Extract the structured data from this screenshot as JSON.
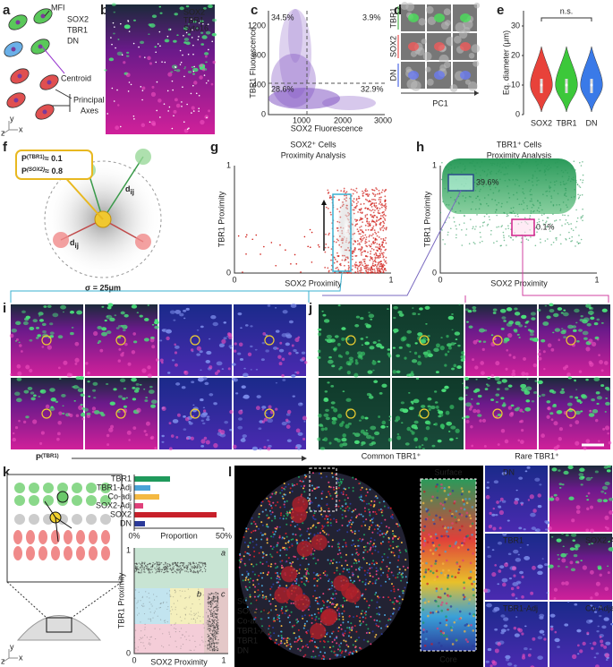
{
  "panel_labels": [
    "a",
    "b",
    "c",
    "d",
    "e",
    "f",
    "g",
    "h",
    "i",
    "j",
    "k",
    "l"
  ],
  "a": {
    "legend": [
      "SOX2",
      "TBR1",
      "DN"
    ],
    "mfi": "MFI",
    "centroid": "Centroid",
    "axes": [
      "Principal",
      "Axes"
    ],
    "orientation": [
      "z",
      "y",
      "x"
    ]
  },
  "b": {
    "channels": [
      "SOX2",
      "TBR1",
      "Syto16"
    ]
  },
  "c": {
    "ylabel": "TBR1 Fluorescence",
    "xlabel": "SOX2 Fluorescence",
    "yticks": [
      0,
      400,
      800,
      1200
    ],
    "xticks": [
      1000,
      2000,
      3000
    ],
    "quadrants": [
      "34.5%",
      "3.9%",
      "28.6%",
      "32.9%"
    ]
  },
  "d": {
    "rows": [
      "TBR1",
      "SOX2",
      "DN"
    ],
    "xlabel": "PC1"
  },
  "e": {
    "ylabel": "Eq. diameter (μm)",
    "yticks": [
      0,
      10,
      20,
      30
    ],
    "categories": [
      "SOX2",
      "TBR1",
      "DN"
    ],
    "annotation": "n.s."
  },
  "f": {
    "p": "P",
    "sub": "i",
    "tbr1_sup": "(TBR1)",
    "tbr1_value": "≈ 0.1",
    "sox2_sup": "(SOX2)",
    "sox2_value": "≈ 0.8",
    "d": "d",
    "d_sub": "ij",
    "sigma": "σ = 25μm"
  },
  "g": {
    "title": [
      "SOX2⁺ Cells",
      "Proximity Analysis"
    ],
    "ylabel": "TBR1 Proximity",
    "xlabel": "SOX2 Proximity",
    "yticks": [
      0,
      1
    ],
    "xticks": [
      0,
      1
    ]
  },
  "h": {
    "title": [
      "TBR1⁺ Cells",
      "Proximity Analysis"
    ],
    "ylabel": "TBR1 Proximity",
    "xlabel": "SOX2 Proximity",
    "yticks": [
      0,
      1
    ],
    "xticks": [
      0,
      1
    ],
    "gates": [
      "39.6%",
      "0.1%"
    ]
  },
  "i": {
    "p": "P",
    "sub": "i",
    "sup": "(TBR1)"
  },
  "j": {
    "captions": [
      "Common TBR1⁺",
      "Rare TBR1⁺"
    ]
  },
  "k": {
    "ylabel": "TBR1 Proximity",
    "xlabel": "SOX2 Proximity",
    "regions": [
      "a",
      "b",
      "c"
    ],
    "ticks": [
      0,
      1
    ]
  },
  "l": {
    "legend": [
      "SOX2",
      "SOX2-Adj",
      "Co-adj",
      "TBR1-Adj",
      "TBR1",
      "DN"
    ],
    "strip": [
      "Surface",
      "Core"
    ],
    "insets": [
      "DN",
      "TBR1",
      "SOX2-Adj",
      "TBR1-Adj",
      "Co-Adjacent"
    ]
  },
  "chart_data": {
    "type": "bar",
    "orientation": "horizontal",
    "categories": [
      "TBR1",
      "TBR1-Adj",
      "Co-adj",
      "SOX2-Adj",
      "SOX2",
      "DN"
    ],
    "values": [
      20,
      9,
      14,
      5,
      46,
      6
    ],
    "colors": [
      "#1f9a5c",
      "#4aa3d8",
      "#f4b942",
      "#e0407a",
      "#c8202a",
      "#2b3a9a"
    ],
    "xlim": [
      0,
      50
    ],
    "xticks": [
      {
        "value": 0,
        "label": "0%"
      },
      {
        "value": 50,
        "label": "50%"
      }
    ],
    "xlabel": "Proportion"
  }
}
